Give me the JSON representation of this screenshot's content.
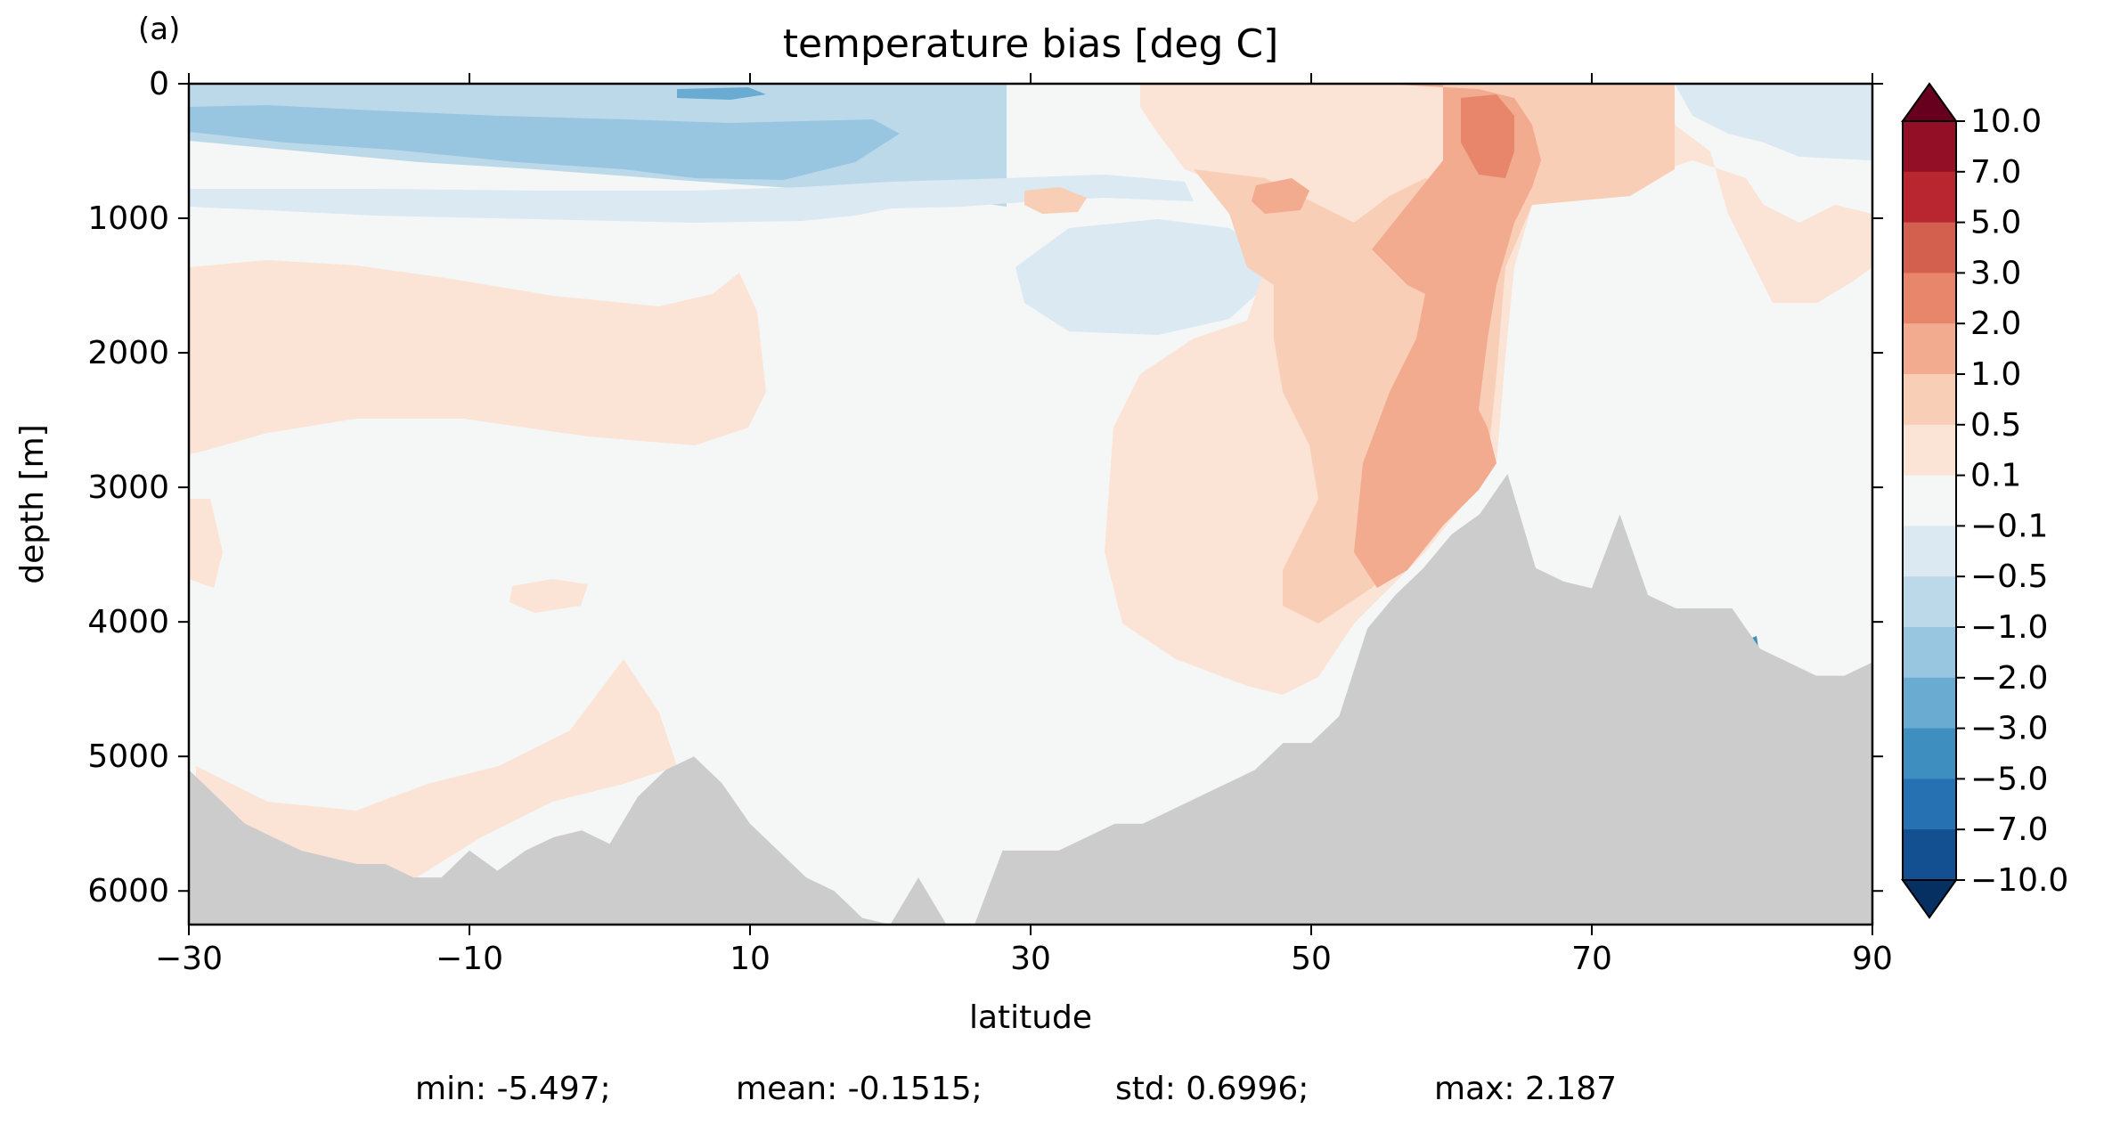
{
  "chart_data": {
    "type": "heatmap",
    "panel_label": "(a)",
    "title": "temperature bias [deg C]",
    "xlabel": "latitude",
    "ylabel": "depth [m]",
    "xlim": [
      -30,
      90
    ],
    "ylim": [
      6250,
      0
    ],
    "y_inverted": true,
    "x_ticks": [
      "−30",
      "−10",
      "10",
      "30",
      "50",
      "70",
      "90"
    ],
    "x_tick_values": [
      -30,
      -10,
      10,
      30,
      50,
      70,
      90
    ],
    "y_ticks": [
      "0",
      "1000",
      "2000",
      "3000",
      "4000",
      "5000",
      "6000"
    ],
    "y_tick_values": [
      0,
      1000,
      2000,
      3000,
      4000,
      5000,
      6000
    ],
    "colorbar": {
      "extend": "both",
      "labels": [
        "10.0",
        "7.0",
        "5.0",
        "3.0",
        "2.0",
        "1.0",
        "0.5",
        "0.1",
        "−0.1",
        "−0.5",
        "−1.0",
        "−2.0",
        "−3.0",
        "−5.0",
        "−7.0",
        "−10.0"
      ],
      "levels": [
        10,
        7,
        5,
        3,
        2,
        1,
        0.5,
        0.1,
        -0.1,
        -0.5,
        -1,
        -2,
        -3,
        -5,
        -7,
        -10
      ],
      "colors": [
        "#67001f",
        "#930f26",
        "#b92630",
        "#d35f4e",
        "#e7866a",
        "#f3ab8f",
        "#f9ceb6",
        "#fbe3d5",
        "#f5f6f6",
        "#dae9f2",
        "#bcd9ea",
        "#98c6e0",
        "#6aabd1",
        "#3f8ec0",
        "#2571b1",
        "#135092",
        "#053061"
      ]
    },
    "bathymetry_color": "#cccccc",
    "bathymetry": {
      "lat": [
        -30,
        -28,
        -26,
        -24,
        -22,
        -20,
        -18,
        -16,
        -14,
        -12,
        -10,
        -8,
        -6,
        -4,
        -2,
        0,
        2,
        4,
        6,
        8,
        10,
        12,
        14,
        16,
        18,
        20,
        22,
        24,
        26,
        28,
        30,
        32,
        34,
        36,
        38,
        40,
        42,
        44,
        46,
        48,
        50,
        52,
        54,
        56,
        58,
        60,
        62,
        64,
        66,
        68,
        70,
        72,
        74,
        76,
        78,
        80,
        82,
        84,
        86,
        88,
        90
      ],
      "depth": [
        5100,
        5300,
        5500,
        5600,
        5700,
        5750,
        5800,
        5800,
        5900,
        5900,
        5700,
        5850,
        5700,
        5600,
        5550,
        5650,
        5300,
        5100,
        5000,
        5200,
        5500,
        5700,
        5900,
        6000,
        6200,
        6250,
        5900,
        6250,
        6250,
        5700,
        5700,
        5700,
        5600,
        5500,
        5500,
        5400,
        5300,
        5200,
        5100,
        4900,
        4900,
        4700,
        4050,
        3800,
        3600,
        3350,
        3200,
        2900,
        3600,
        3700,
        3750,
        3200,
        3800,
        3900,
        3900,
        3900,
        4200,
        4300,
        4400,
        4400,
        4300
      ]
    },
    "stats": {
      "min": "min: -5.497;",
      "mean": "mean: -0.1515;",
      "std": "std: 0.6996;",
      "max": "max: 2.187"
    }
  }
}
